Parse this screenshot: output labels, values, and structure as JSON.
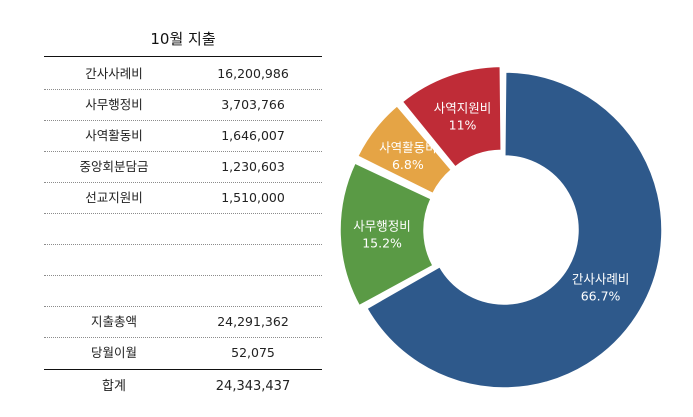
{
  "table": {
    "title": "10월 지출",
    "rows": [
      {
        "name": "간사사례비",
        "value": "16,200,986"
      },
      {
        "name": "사무행정비",
        "value": "3,703,766"
      },
      {
        "name": "사역활동비",
        "value": "1,646,007"
      },
      {
        "name": "중앙회분담금",
        "value": "1,230,603"
      },
      {
        "name": "선교지원비",
        "value": "1,510,000"
      },
      {
        "name": "",
        "value": ""
      },
      {
        "name": "",
        "value": ""
      },
      {
        "name": "",
        "value": ""
      },
      {
        "name": "지출총액",
        "value": "24,291,362"
      },
      {
        "name": "당월이월",
        "value": "52,075"
      }
    ],
    "total": {
      "name": "합계",
      "value": "24,343,437"
    }
  },
  "chart_data": {
    "type": "pie",
    "donut": true,
    "labels": [
      "간사사례비",
      "사무행정비",
      "사역활동비",
      "사역지원비"
    ],
    "values": [
      66.7,
      15.2,
      6.8,
      11
    ],
    "value_labels": [
      "66.7%",
      "15.2%",
      "6.8%",
      "11%"
    ],
    "colors": [
      "#2e598b",
      "#5a9a45",
      "#e5a445",
      "#bf2c37"
    ],
    "start_angle_deg": 0,
    "direction": "clockwise"
  }
}
